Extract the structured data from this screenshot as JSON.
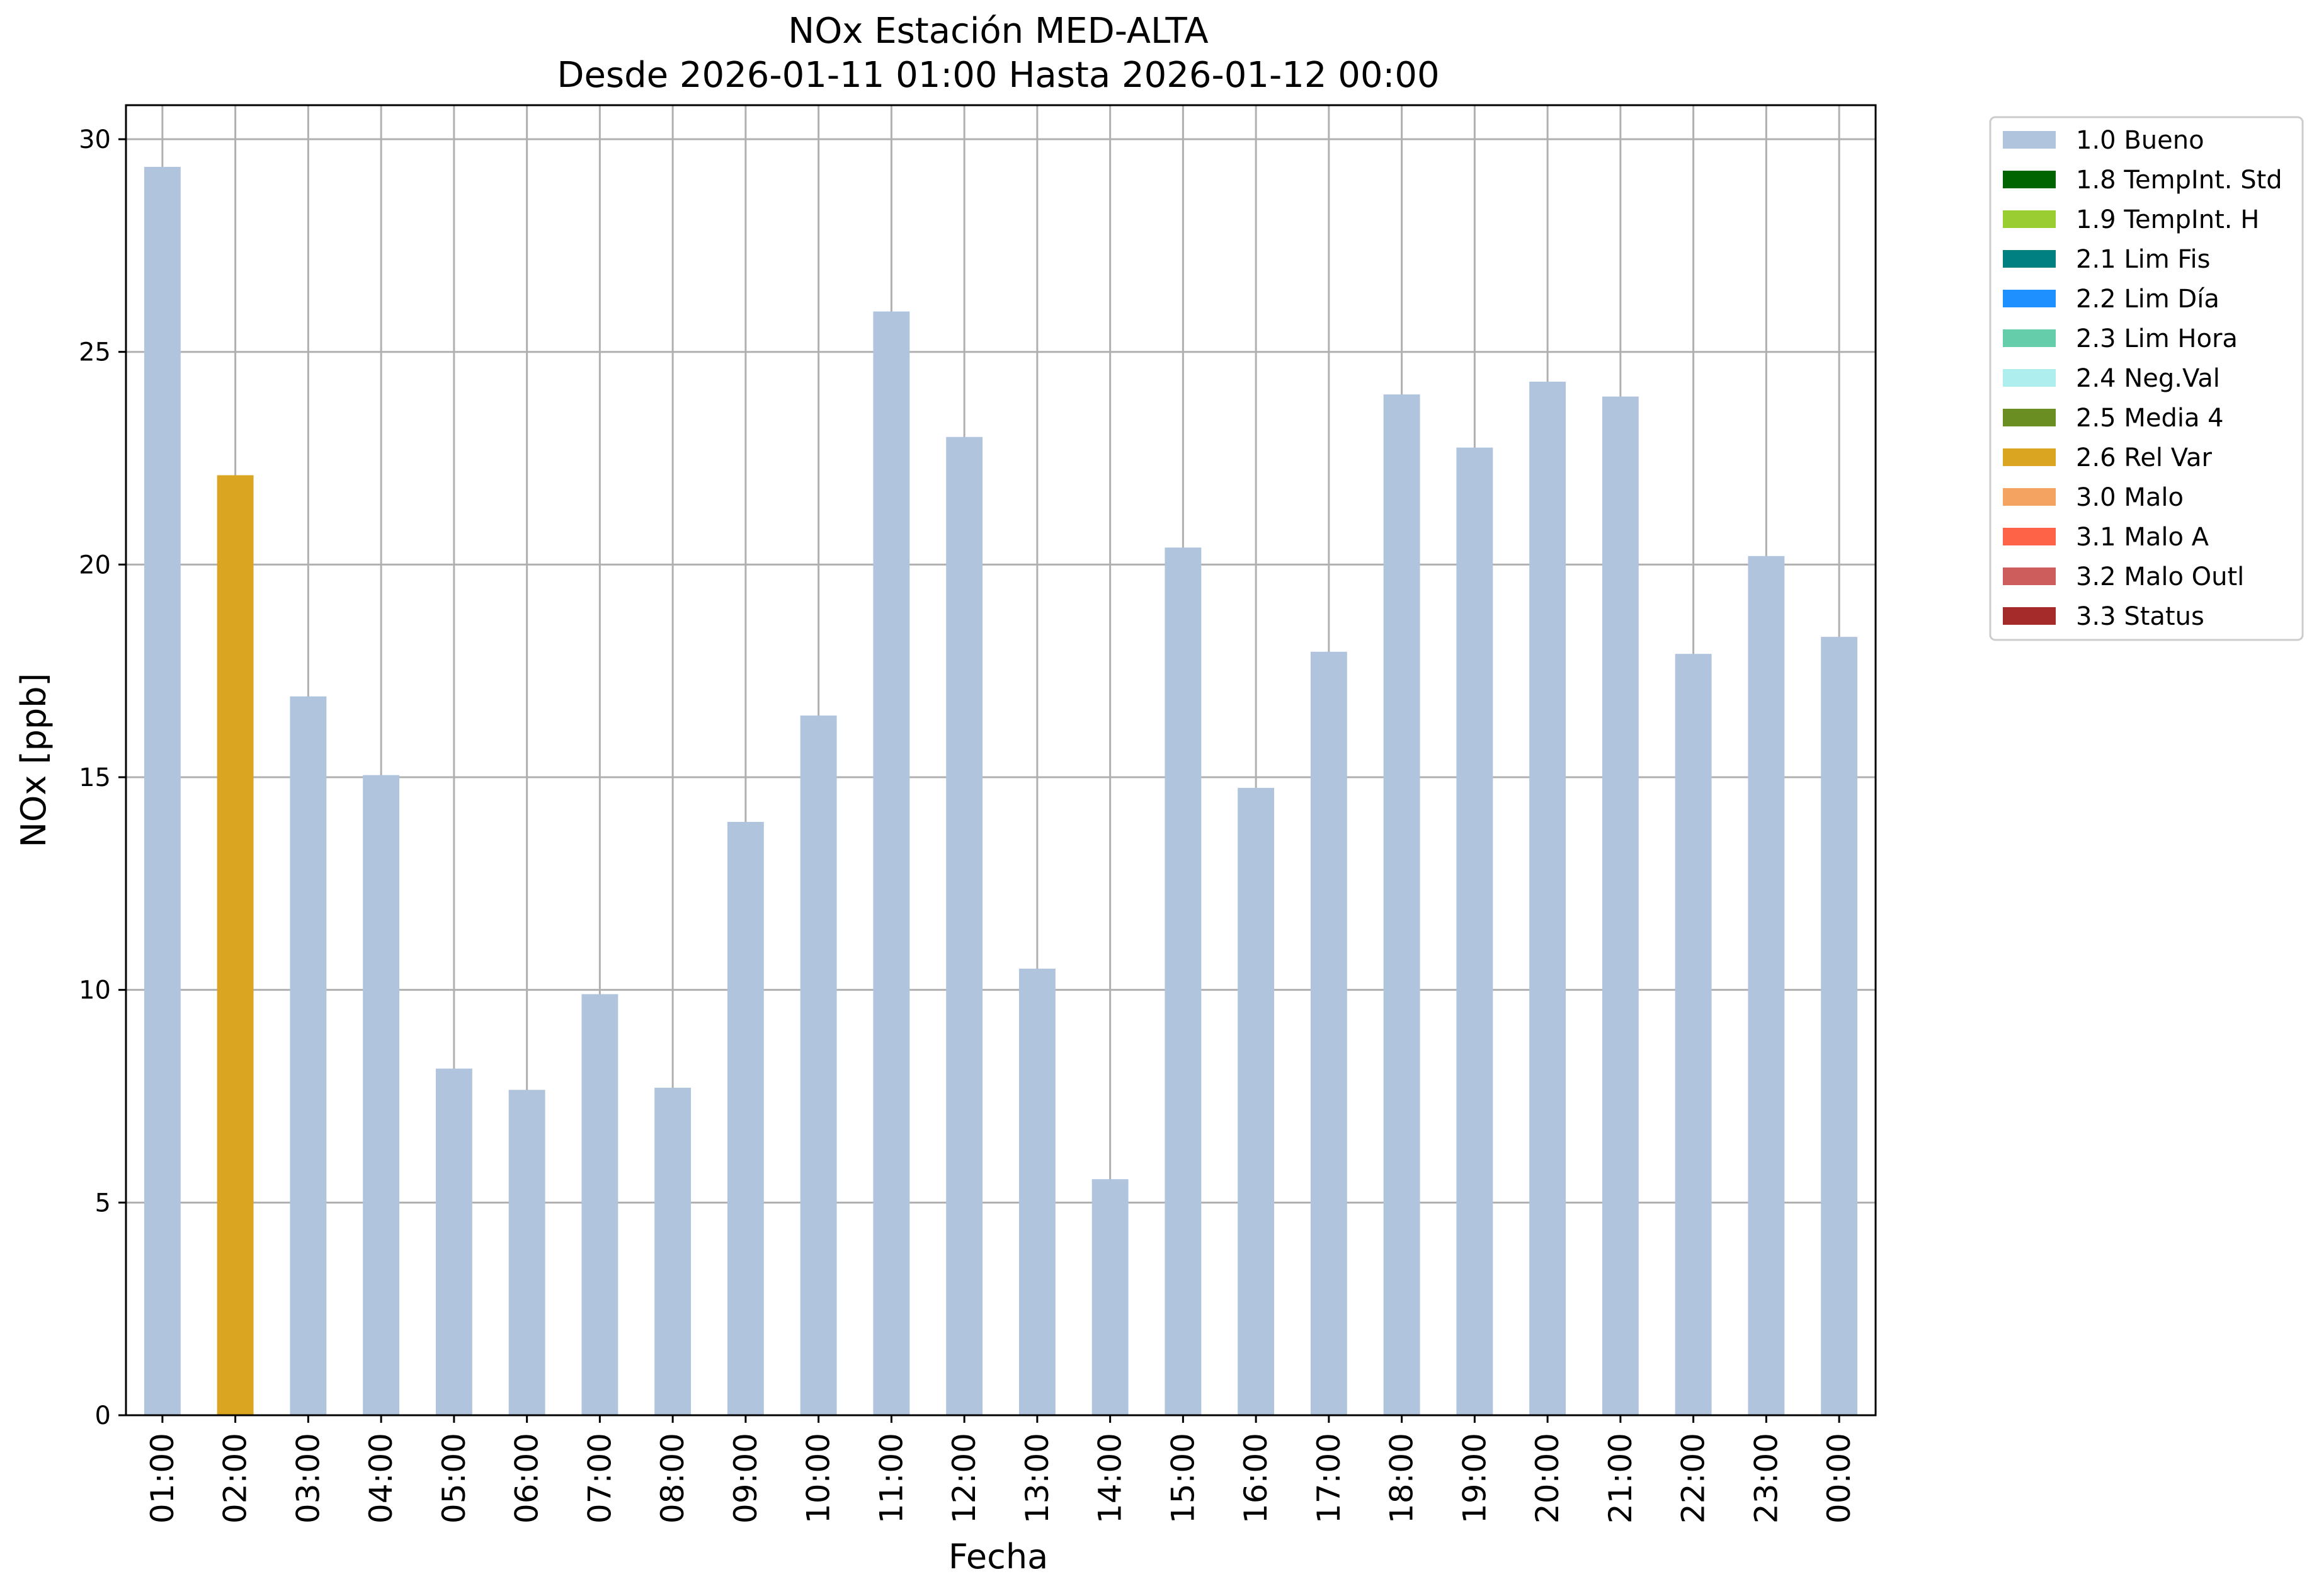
{
  "chart_data": {
    "type": "bar",
    "title": "NOx Estación MED-ALTA",
    "subtitle": "Desde 2026-01-11 01:00 Hasta 2026-01-12 00:00",
    "xlabel": "Fecha",
    "ylabel": "NOx [ppb]",
    "ylim": [
      0,
      30.8
    ],
    "yticks": [
      0,
      5,
      10,
      15,
      20,
      25,
      30
    ],
    "grid": true,
    "legend_position": "outside-top-right",
    "categories": [
      "01:00",
      "02:00",
      "03:00",
      "04:00",
      "05:00",
      "06:00",
      "07:00",
      "08:00",
      "09:00",
      "10:00",
      "11:00",
      "12:00",
      "13:00",
      "14:00",
      "15:00",
      "16:00",
      "17:00",
      "18:00",
      "19:00",
      "20:00",
      "21:00",
      "22:00",
      "23:00",
      "00:00"
    ],
    "values": [
      29.35,
      22.1,
      16.9,
      15.05,
      8.15,
      7.65,
      9.9,
      7.7,
      13.95,
      16.45,
      25.95,
      23.0,
      10.5,
      5.55,
      20.4,
      14.75,
      17.95,
      24.0,
      22.75,
      24.3,
      23.95,
      17.9,
      20.2,
      18.3
    ],
    "flags": [
      "1.0 Bueno",
      "2.6 Rel Var",
      "1.0 Bueno",
      "1.0 Bueno",
      "1.0 Bueno",
      "1.0 Bueno",
      "1.0 Bueno",
      "1.0 Bueno",
      "1.0 Bueno",
      "1.0 Bueno",
      "1.0 Bueno",
      "1.0 Bueno",
      "1.0 Bueno",
      "1.0 Bueno",
      "1.0 Bueno",
      "1.0 Bueno",
      "1.0 Bueno",
      "1.0 Bueno",
      "1.0 Bueno",
      "1.0 Bueno",
      "1.0 Bueno",
      "1.0 Bueno",
      "1.0 Bueno",
      "1.0 Bueno"
    ],
    "legend": [
      {
        "label": "1.0 Bueno",
        "color": "#b0c4de"
      },
      {
        "label": "1.8 TempInt. Std",
        "color": "#006400"
      },
      {
        "label": "1.9 TempInt. H",
        "color": "#9acd32"
      },
      {
        "label": "2.1 Lim Fis",
        "color": "#008080"
      },
      {
        "label": "2.2 Lim Día",
        "color": "#1e90ff"
      },
      {
        "label": "2.3 Lim Hora",
        "color": "#66cdaa"
      },
      {
        "label": "2.4 Neg.Val",
        "color": "#afeeee"
      },
      {
        "label": "2.5 Media 4",
        "color": "#6b8e23"
      },
      {
        "label": "2.6 Rel Var",
        "color": "#daa520"
      },
      {
        "label": "3.0 Malo",
        "color": "#f4a460"
      },
      {
        "label": "3.1 Malo A",
        "color": "#ff6347"
      },
      {
        "label": "3.2 Malo Outl",
        "color": "#cd5c5c"
      },
      {
        "label": "3.3 Status",
        "color": "#a52a2a"
      }
    ]
  }
}
